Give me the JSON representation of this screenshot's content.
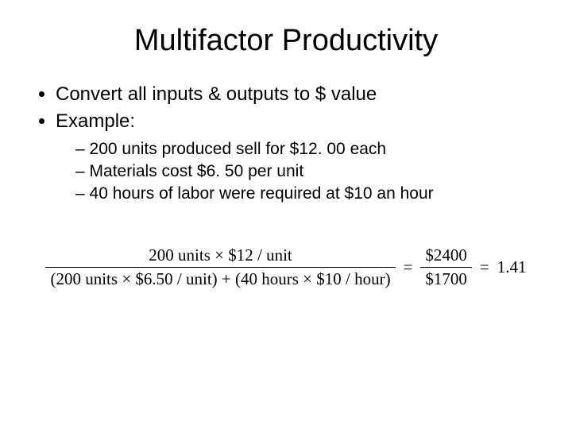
{
  "title": "Multifactor Productivity",
  "bullets": {
    "b1": "Convert all inputs & outputs to $ value",
    "b2": "Example:",
    "sub1": "200 units produced sell for $12. 00 each",
    "sub2": "Materials cost $6. 50 per unit",
    "sub3": "40 hours of labor were required at $10 an hour"
  },
  "formula": {
    "lhs_num": "200 units × $12 / unit",
    "lhs_den": "(200 units × $6.50 / unit) + (40 hours × $10 / hour)",
    "rhs_num": "$2400",
    "rhs_den": "$1700",
    "result": "1.41",
    "eq": "="
  },
  "style": {
    "background_color": "#ffffff",
    "text_color": "#000000",
    "title_fontsize": 38,
    "body_fontsize": 24,
    "sub_fontsize": 21,
    "formula_fontsize": 21,
    "font_family_body": "Arial",
    "font_family_formula": "Times New Roman"
  }
}
